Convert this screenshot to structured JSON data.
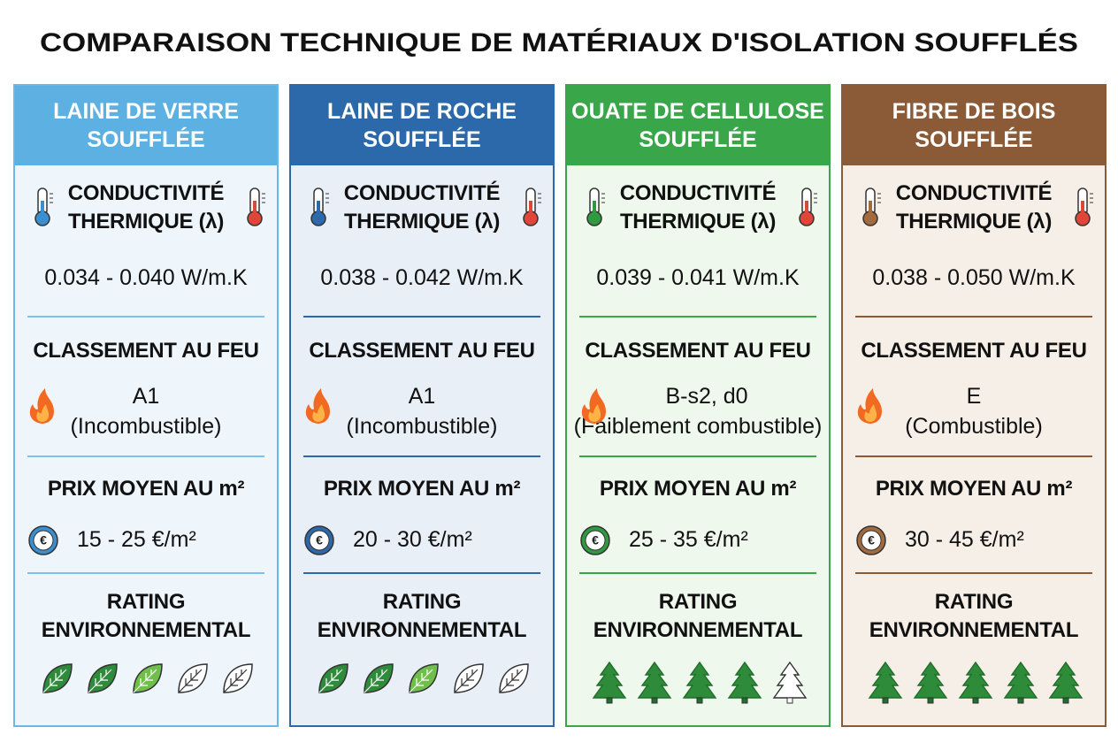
{
  "title": "COMPARAISON TECHNIQUE DE MATÉRIAUX D'ISOLATION SOUFFLÉS",
  "columns": [
    {
      "header": [
        "LAINE DE VERRE",
        "SOUFFLÉE"
      ],
      "conductivity_label": [
        "CONDUCTIVITÉ",
        "THERMIQUE (λ)"
      ],
      "conductivity": "0.034 - 0.040 W/m.K",
      "fire_label": "CLASSEMENT AU FEU",
      "fire_class": "A1",
      "fire_desc": "(Incombustible)",
      "price_label": "PRIX MOYEN AU m²",
      "price": "15 - 25 €/m²",
      "rating_label": [
        "RATING",
        "ENVIRONNEMENTAL"
      ]
    },
    {
      "header": [
        "LAINE DE ROCHE",
        "SOUFFLÉE"
      ],
      "conductivity_label": [
        "CONDUCTIVITÉ",
        "THERMIQUE (λ)"
      ],
      "conductivity": "0.038 - 0.042 W/m.K",
      "fire_label": "CLASSEMENT AU FEU",
      "fire_class": "A1",
      "fire_desc": "(Incombustible)",
      "price_label": "PRIX MOYEN AU m²",
      "price": "20 - 30 €/m²",
      "rating_label": [
        "RATING",
        "ENVIRONNEMENTAL"
      ]
    },
    {
      "header": [
        "OUATE DE CELLULOSE",
        "SOUFFLÉE"
      ],
      "conductivity_label": [
        "CONDUCTIVITÉ",
        "THERMIQUE (λ)"
      ],
      "conductivity": "0.039 - 0.041 W/m.K",
      "fire_label": "CLASSEMENT AU FEU",
      "fire_class": "B-s2, d0",
      "fire_desc": "(Faiblement combustible)",
      "price_label": "PRIX MOYEN AU m²",
      "price": "25 - 35 €/m²",
      "rating_label": [
        "RATING",
        "ENVIRONNEMENTAL"
      ]
    },
    {
      "header": [
        "FIBRE DE BOIS",
        "SOUFFLÉE"
      ],
      "conductivity_label": [
        "CONDUCTIVITÉ",
        "THERMIQUE (λ)"
      ],
      "conductivity": "0.038 - 0.050 W/m.K",
      "fire_label": "CLASSEMENT AU FEU",
      "fire_class": "E",
      "fire_desc": "(Combustible)",
      "price_label": "PRIX MOYEN AU m²",
      "price": "30 - 45 €/m²",
      "rating_label": [
        "RATING",
        "ENVIRONNEMENTAL"
      ]
    }
  ]
}
